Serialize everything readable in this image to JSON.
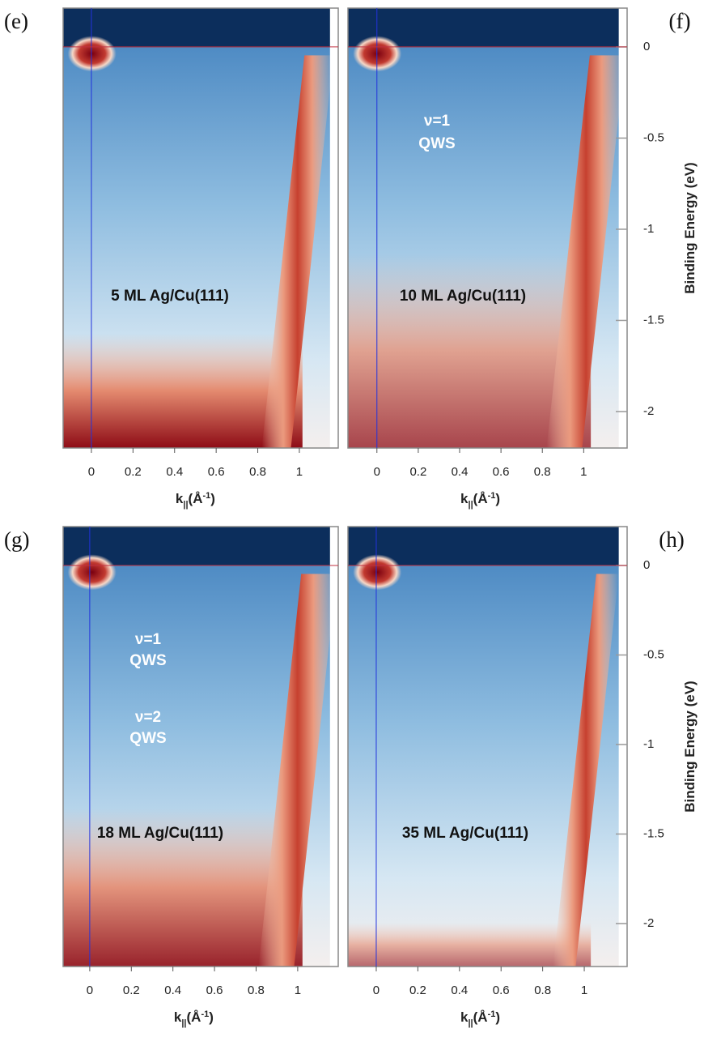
{
  "chart_data": [
    {
      "type": "heatmap",
      "panel_label": "(e)",
      "annotations": [
        "5 ML Ag/Cu(111)"
      ],
      "xlabel_parts": [
        "k",
        "||",
        "(Å",
        "-1",
        ")"
      ],
      "xlim": [
        -0.136,
        1.187
      ],
      "xticks": [
        0,
        0.2,
        0.4,
        0.6,
        0.8,
        1
      ],
      "ylim": [
        -2.2,
        0.213
      ]
    },
    {
      "type": "heatmap",
      "panel_label": "(f)",
      "annotations": [
        "ν=1",
        "QWS",
        "10 ML Ag/Cu(111)"
      ],
      "xlabel_parts": [
        "k",
        "||",
        "(Å",
        "-1",
        ")"
      ],
      "xlim": [
        -0.14,
        1.21
      ],
      "xticks": [
        0,
        0.2,
        0.4,
        0.6,
        0.8,
        1
      ],
      "ylabel": "Binding Energy (eV)",
      "ylim": [
        -2.2,
        0.213
      ],
      "yticks": [
        0,
        -0.5,
        -1,
        -1.5,
        -2
      ]
    },
    {
      "type": "heatmap",
      "panel_label": "(g)",
      "annotations": [
        "ν=1",
        "QWS",
        "ν=2",
        "QWS",
        "18 ML Ag/Cu(111)"
      ],
      "xlabel_parts": [
        "k",
        "||",
        "(Å",
        "-1",
        ")"
      ],
      "xlim": [
        -0.128,
        1.195
      ],
      "xticks": [
        0,
        0.2,
        0.4,
        0.6,
        0.8,
        1
      ],
      "ylim": [
        -2.24,
        0.217
      ]
    },
    {
      "type": "heatmap",
      "panel_label": "(h)",
      "annotations": [
        "35 ML Ag/Cu(111)"
      ],
      "xlabel_parts": [
        "k",
        "||",
        "(Å",
        "-1",
        ")"
      ],
      "xlim": [
        -0.136,
        1.206
      ],
      "xticks": [
        0,
        0.2,
        0.4,
        0.6,
        0.8,
        1
      ],
      "ylabel": "Binding Energy (eV)",
      "ylim": [
        -2.24,
        0.217
      ],
      "yticks": [
        0,
        -0.5,
        -1,
        -1.5,
        -2
      ]
    }
  ]
}
